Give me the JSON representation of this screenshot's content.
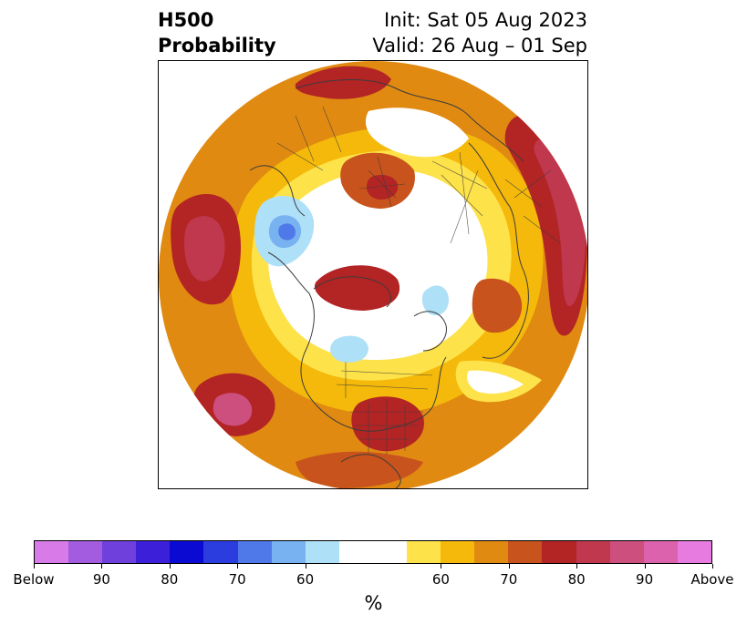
{
  "title": {
    "left_line1": "H500",
    "left_line2": "Probability",
    "right_line1": "Init: Sat 05 Aug 2023",
    "right_line2": "Valid: 26 Aug – 01 Sep"
  },
  "map": {
    "projection": "north-polar-stereographic",
    "features": [
      "probability-contours",
      "country-borders",
      "coastlines",
      "us-state-borders"
    ]
  },
  "colorbar": {
    "colors": [
      "#d87ae8",
      "#a35be0",
      "#7040dc",
      "#3c1fd8",
      "#0a0ad2",
      "#2b3ddf",
      "#4f78e8",
      "#78b2f0",
      "#aee0f8",
      "#ffffff",
      "#ffffff",
      "#fde24a",
      "#f4b90a",
      "#e08a12",
      "#c8531c",
      "#b32424",
      "#c0384e",
      "#cc4f7e",
      "#dc62ad",
      "#e77be0"
    ],
    "labels": [
      "Below",
      "90",
      "80",
      "70",
      "60",
      "60",
      "70",
      "80",
      "90",
      "Above"
    ],
    "unit": "%"
  }
}
